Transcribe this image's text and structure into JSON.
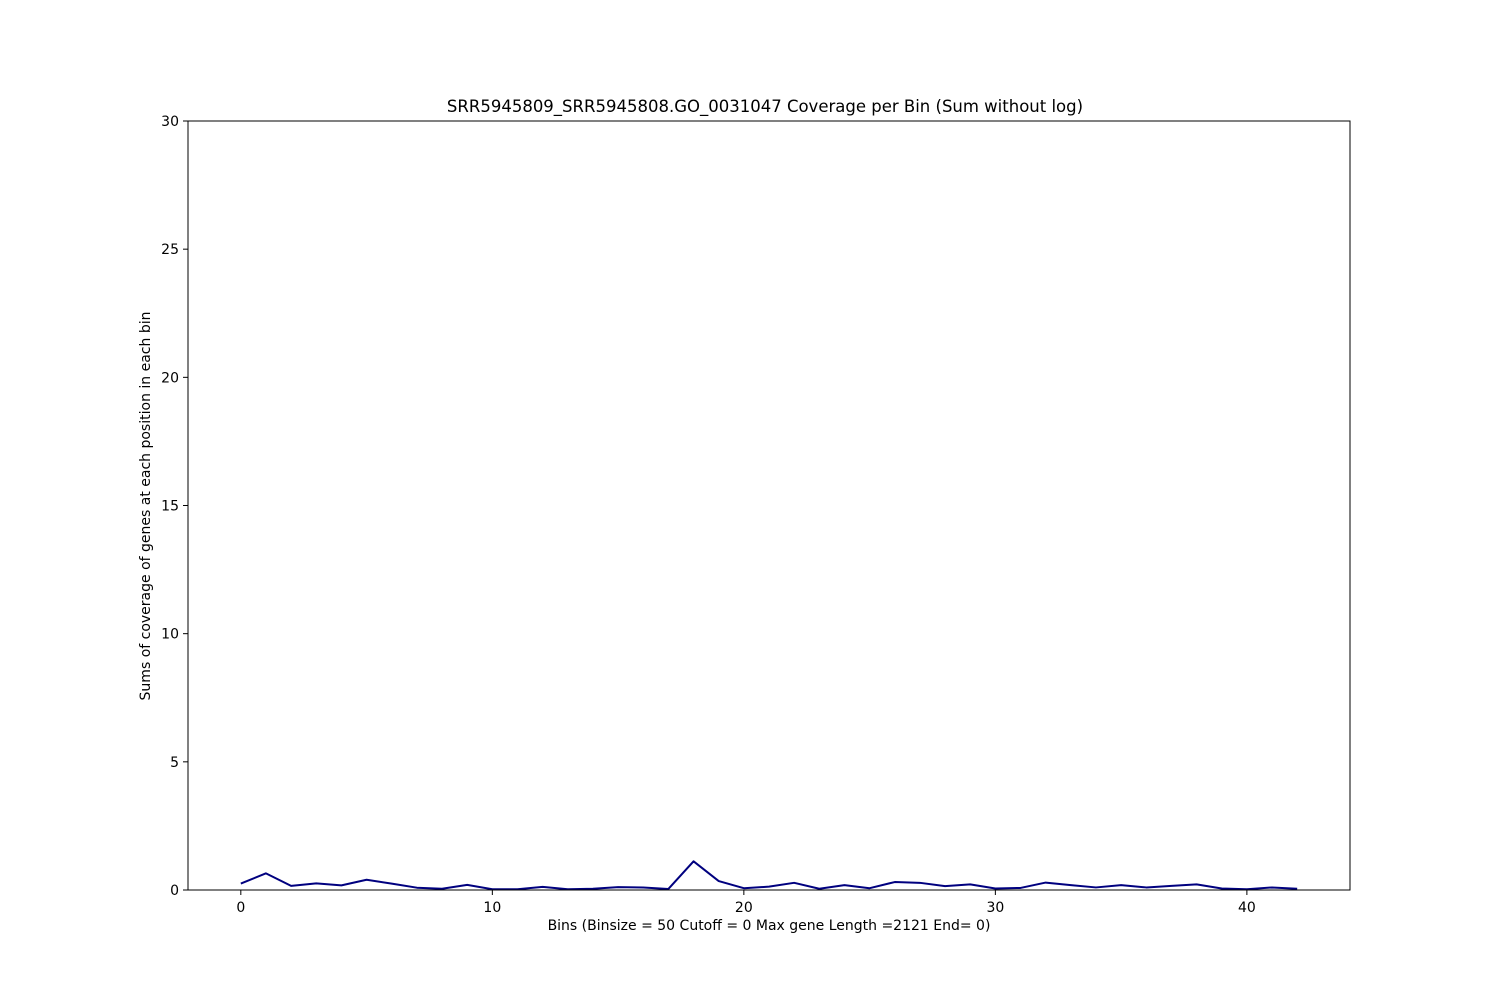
{
  "chart_data": {
    "type": "line",
    "title": "SRR5945809_SRR5945808.GO_0031047 Coverage per Bin (Sum without log)",
    "xlabel": "Bins  (Binsize = 50 Cutoff = 0 Max gene Length =2121 End= 0)",
    "ylabel": "Sums of coverage of genes at each position in each bin",
    "xlim": [
      -2.1,
      44.1
    ],
    "ylim": [
      0,
      30
    ],
    "x_ticks": [
      0,
      10,
      20,
      30,
      40
    ],
    "y_ticks": [
      0,
      5,
      10,
      15,
      20,
      25,
      30
    ],
    "grid": false,
    "colors": {
      "line": "#00007f",
      "axes": "#000000",
      "background": "#ffffff"
    },
    "series": [
      {
        "x": [
          0,
          1,
          2,
          3,
          4,
          5,
          6,
          7,
          8,
          9,
          10,
          11,
          12,
          13,
          14,
          15,
          16,
          17,
          18,
          19,
          20,
          21,
          22,
          23,
          24,
          25,
          26,
          27,
          28,
          29,
          30,
          31,
          32,
          33,
          34,
          35,
          36,
          37,
          38,
          39,
          40,
          41,
          42
        ],
        "values": [
          0.25,
          0.65,
          0.16,
          0.26,
          0.18,
          0.4,
          0.25,
          0.09,
          0.05,
          0.2,
          0.03,
          0.03,
          0.12,
          0.03,
          0.05,
          0.11,
          0.1,
          0.04,
          1.12,
          0.35,
          0.07,
          0.13,
          0.28,
          0.05,
          0.19,
          0.07,
          0.31,
          0.28,
          0.15,
          0.22,
          0.06,
          0.08,
          0.29,
          0.19,
          0.1,
          0.19,
          0.1,
          0.16,
          0.22,
          0.06,
          0.03,
          0.1,
          0.05
        ]
      }
    ]
  }
}
